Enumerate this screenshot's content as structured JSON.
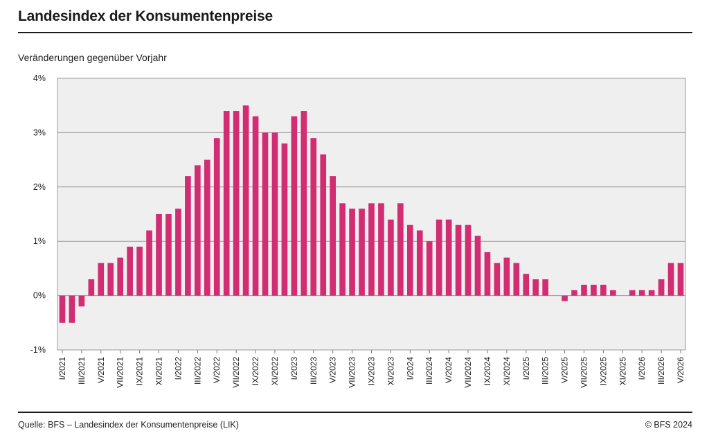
{
  "header": {
    "title": "Landesindex der Konsumentenpreise",
    "subtitle": "Veränderungen gegenüber Vorjahr"
  },
  "footer": {
    "source": "Quelle: BFS – Landesindex der Konsumentenpreise (LIK)",
    "copyright": "© BFS 2024"
  },
  "colors": {
    "bar": "#d22d72",
    "plot_background": "#efefef",
    "grid": "#9a9a9a"
  },
  "chart_data": {
    "type": "bar",
    "title": "Landesindex der Konsumentenpreise",
    "subtitle": "Veränderungen gegenüber Vorjahr",
    "xlabel": "",
    "ylabel": "",
    "ylim": [
      -1,
      4
    ],
    "yticks": [
      -1,
      0,
      1,
      2,
      3,
      4
    ],
    "ytick_labels": [
      "-1%",
      "0%",
      "1%",
      "2%",
      "3%",
      "4%"
    ],
    "grid": true,
    "legend": "none",
    "x_tick_labels": [
      "I/2021",
      "III/2021",
      "V/2021",
      "VII/2021",
      "IX/2021",
      "XI/2021",
      "I/2022",
      "III/2022",
      "V/2022",
      "VII/2022",
      "IX/2022",
      "XI/2022",
      "I/2023",
      "III/2023",
      "V/2023",
      "VII/2023",
      "IX/2023",
      "XI/2023",
      "I/2024",
      "III/2024",
      "V/2024",
      "VII/2024",
      "IX/2024",
      "XI/2024",
      "I/2025",
      "III/2025",
      "V/2025",
      "VII/2025",
      "IX/2025",
      "XI/2025",
      "I/2026",
      "III/2026",
      "V/2026"
    ],
    "values": [
      -0.5,
      -0.5,
      -0.2,
      0.3,
      0.6,
      0.6,
      0.7,
      0.9,
      0.9,
      1.2,
      1.5,
      1.5,
      1.6,
      2.2,
      2.4,
      2.5,
      2.9,
      3.4,
      3.4,
      3.5,
      3.3,
      3.0,
      3.0,
      2.8,
      3.3,
      3.4,
      2.9,
      2.6,
      2.2,
      1.7,
      1.6,
      1.6,
      1.7,
      1.7,
      1.4,
      1.7,
      1.3,
      1.2,
      1.0,
      1.4,
      1.4,
      1.3,
      1.3,
      1.1,
      0.8,
      0.6,
      0.7,
      0.6,
      0.4,
      0.3,
      0.3,
      0.0,
      -0.1,
      0.1,
      0.2,
      0.2,
      0.2,
      0.1,
      0.0,
      0.1,
      0.1,
      0.1,
      0.3,
      0.6,
      0.6
    ]
  }
}
